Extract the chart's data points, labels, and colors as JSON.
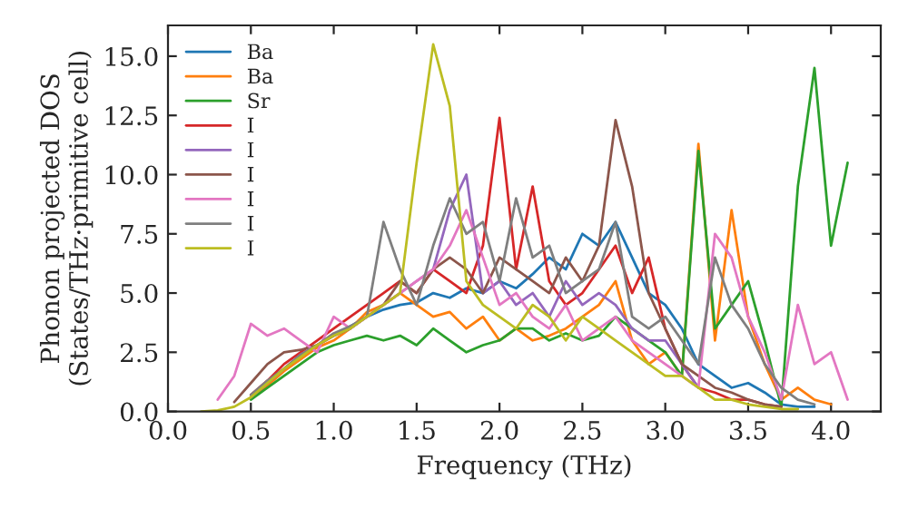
{
  "chart_data": {
    "type": "line",
    "xlabel": "Frequency (THz)",
    "ylabel": "Phonon projected DOS\n(States/THz·primitive cell)",
    "x": [
      0.2,
      0.3,
      0.4,
      0.5,
      0.6,
      0.7,
      0.8,
      0.9,
      1.0,
      1.1,
      1.2,
      1.3,
      1.4,
      1.5,
      1.6,
      1.7,
      1.8,
      1.9,
      2.0,
      2.1,
      2.2,
      2.3,
      2.4,
      2.5,
      2.6,
      2.7,
      2.8,
      2.9,
      3.0,
      3.1,
      3.2,
      3.3,
      3.4,
      3.5,
      3.6,
      3.7,
      3.8,
      3.9,
      4.0,
      4.1
    ],
    "series": [
      {
        "name": "Ba",
        "color": "#1f77b4",
        "values": [
          null,
          null,
          null,
          null,
          null,
          null,
          null,
          null,
          3.2,
          3.6,
          4.0,
          4.3,
          4.5,
          4.6,
          5.0,
          4.8,
          5.2,
          5.0,
          5.5,
          5.2,
          5.8,
          6.5,
          6.0,
          7.5,
          7.0,
          8.0,
          6.5,
          5.0,
          4.5,
          3.5,
          2.0,
          1.5,
          1.0,
          1.2,
          0.8,
          0.3,
          0.2,
          0.2,
          null,
          null
        ]
      },
      {
        "name": "Ba",
        "color": "#ff7f0e",
        "values": [
          null,
          null,
          null,
          0.6,
          1.1,
          1.7,
          2.2,
          2.7,
          3.0,
          3.5,
          4.2,
          4.5,
          5.0,
          4.5,
          4.0,
          4.2,
          3.5,
          4.0,
          3.0,
          3.5,
          3.0,
          3.2,
          3.5,
          4.0,
          4.5,
          5.5,
          3.0,
          2.0,
          2.5,
          1.5,
          11.3,
          3.0,
          8.5,
          4.0,
          2.0,
          0.5,
          1.0,
          0.5,
          0.3,
          null
        ]
      },
      {
        "name": "Sr",
        "color": "#2ca02c",
        "values": [
          null,
          null,
          null,
          0.5,
          1.0,
          1.5,
          2.0,
          2.5,
          2.8,
          3.0,
          3.2,
          3.0,
          3.2,
          2.8,
          3.5,
          3.0,
          2.5,
          2.8,
          3.0,
          3.5,
          3.5,
          3.0,
          3.3,
          3.0,
          3.2,
          4.0,
          3.5,
          3.0,
          2.5,
          1.5,
          11.0,
          3.5,
          4.5,
          5.5,
          3.0,
          0.2,
          9.5,
          14.5,
          7.0,
          10.5
        ]
      },
      {
        "name": "I",
        "color": "#d62728",
        "values": [
          null,
          null,
          null,
          0.7,
          1.3,
          2.0,
          2.5,
          3.0,
          3.5,
          4.0,
          4.5,
          5.0,
          5.5,
          5.0,
          6.0,
          5.5,
          5.0,
          7.0,
          12.4,
          6.0,
          9.5,
          5.5,
          4.5,
          5.0,
          6.0,
          7.0,
          5.0,
          6.5,
          3.5,
          2.0,
          1.0,
          0.8,
          0.5,
          0.5,
          0.3,
          0.2,
          null,
          null,
          null,
          null
        ]
      },
      {
        "name": "I",
        "color": "#9467bd",
        "values": [
          null,
          null,
          null,
          0.6,
          1.2,
          1.8,
          2.4,
          2.8,
          3.2,
          3.5,
          4.0,
          4.5,
          5.0,
          5.5,
          6.0,
          8.5,
          10.0,
          5.0,
          5.5,
          4.5,
          5.0,
          4.0,
          5.5,
          4.5,
          5.0,
          4.5,
          3.5,
          3.0,
          3.0,
          2.0,
          1.0,
          null,
          null,
          null,
          null,
          null,
          null,
          null,
          null,
          null
        ]
      },
      {
        "name": "I",
        "color": "#8c564b",
        "values": [
          null,
          null,
          0.4,
          1.2,
          2.0,
          2.5,
          2.6,
          2.8,
          3.2,
          3.5,
          4.0,
          4.5,
          5.5,
          5.0,
          6.0,
          6.5,
          6.0,
          5.0,
          6.5,
          6.0,
          5.5,
          5.0,
          6.5,
          5.5,
          7.0,
          12.3,
          9.5,
          5.0,
          3.5,
          2.0,
          1.5,
          1.0,
          0.8,
          0.5,
          0.3,
          0.2,
          null,
          null,
          null,
          null
        ]
      },
      {
        "name": "I",
        "color": "#e377c2",
        "values": [
          null,
          0.5,
          1.5,
          3.7,
          3.2,
          3.5,
          3.0,
          2.5,
          4.0,
          3.5,
          4.0,
          4.5,
          5.0,
          5.5,
          6.0,
          7.0,
          8.5,
          6.5,
          4.5,
          5.0,
          4.0,
          3.5,
          4.5,
          3.0,
          3.5,
          4.0,
          3.0,
          2.5,
          2.0,
          1.5,
          1.0,
          7.5,
          6.5,
          4.0,
          2.5,
          0.5,
          4.5,
          2.0,
          2.5,
          0.5
        ]
      },
      {
        "name": "I",
        "color": "#7f7f7f",
        "values": [
          null,
          null,
          null,
          0.7,
          1.3,
          1.8,
          2.4,
          2.8,
          3.3,
          3.6,
          4.0,
          8.0,
          6.0,
          4.5,
          7.0,
          9.0,
          7.5,
          8.0,
          5.5,
          9.0,
          6.5,
          7.0,
          5.0,
          5.5,
          6.0,
          8.0,
          4.0,
          3.5,
          4.0,
          3.0,
          2.0,
          6.5,
          4.5,
          3.5,
          2.0,
          1.0,
          0.5,
          0.3,
          null,
          null
        ]
      },
      {
        "name": "I",
        "color": "#bcbd22",
        "values": [
          0,
          0.05,
          0.2,
          0.6,
          1.2,
          1.8,
          2.3,
          2.8,
          3.2,
          3.5,
          4.0,
          4.5,
          5.0,
          10.5,
          15.5,
          12.9,
          5.5,
          4.5,
          4.0,
          3.5,
          4.5,
          4.0,
          3.0,
          4.0,
          3.5,
          3.0,
          2.5,
          2.0,
          1.5,
          1.5,
          1.0,
          0.5,
          0.5,
          0.3,
          0.2,
          0.1,
          0.1,
          null,
          null,
          null
        ]
      }
    ],
    "xlim": [
      0.0,
      4.3
    ],
    "ylim": [
      0.0,
      16.3
    ],
    "xticks": [
      {
        "value": 0.0,
        "label": "0.0"
      },
      0.5,
      {
        "value": 1.0,
        "label": "1.0"
      },
      1.5,
      {
        "value": 2.0,
        "label": "2.0"
      },
      2.5,
      {
        "value": 3.0,
        "label": "3.0"
      },
      3.5,
      {
        "value": 4.0,
        "label": "4.0"
      }
    ],
    "yticks": [
      {
        "value": 0.0,
        "label": "0.0"
      },
      2.5,
      {
        "value": 5.0,
        "label": "5.0"
      },
      7.5,
      {
        "value": 10.0,
        "label": "10.0"
      },
      12.5,
      {
        "value": 15.0,
        "label": "15.0"
      }
    ],
    "legend": "top left",
    "grid": false,
    "marker": "none",
    "line_style": "solid"
  }
}
